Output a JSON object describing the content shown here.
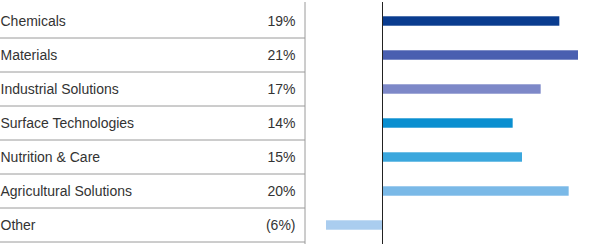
{
  "chart_data": {
    "type": "bar",
    "orientation": "horizontal",
    "categories": [
      "Chemicals",
      "Materials",
      "Industrial Solutions",
      "Surface Technologies",
      "Nutrition & Care",
      "Agricultural Solutions",
      "Other"
    ],
    "values": [
      19,
      21,
      17,
      14,
      15,
      20,
      -6
    ],
    "value_labels": [
      "19%",
      "21%",
      "17%",
      "14%",
      "15%",
      "20%",
      "(6%)"
    ],
    "colors": [
      "#0a3c8f",
      "#4a5fb0",
      "#7d88c8",
      "#0a8fd0",
      "#3ba7dd",
      "#7ab9e7",
      "#aacdef"
    ],
    "xlim": [
      -6,
      21
    ],
    "data_labels": true,
    "tick_labels": false
  }
}
